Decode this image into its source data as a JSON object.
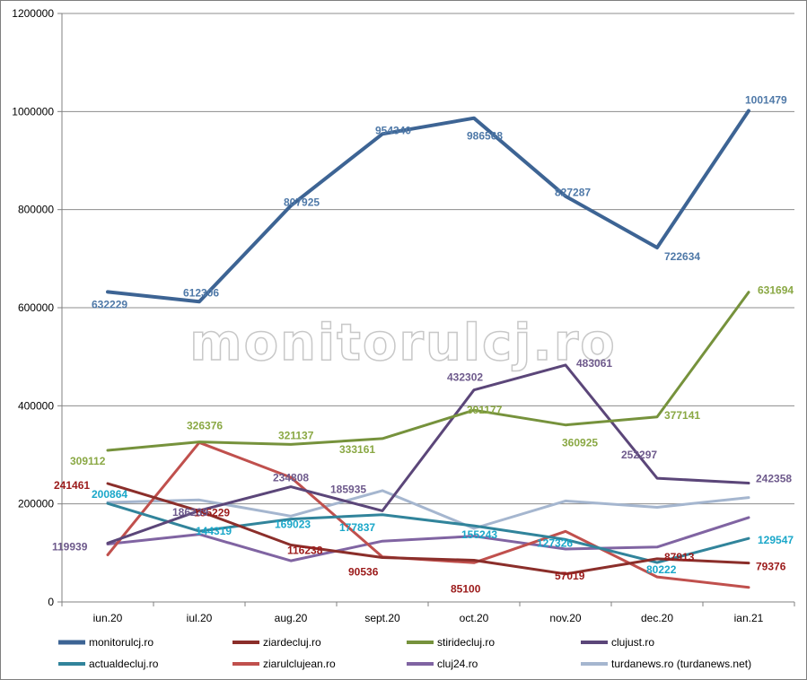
{
  "watermark": "monitorulcj.ro",
  "chart_data": {
    "type": "line",
    "categories": [
      "iun.20",
      "iul.20",
      "aug.20",
      "sept.20",
      "oct.20",
      "nov.20",
      "dec.20",
      "ian.21"
    ],
    "ylim": [
      0,
      1200000
    ],
    "yticks": [
      0,
      200000,
      400000,
      600000,
      800000,
      1000000,
      1200000
    ],
    "ytick_labels": [
      "0",
      "200000",
      "400000",
      "600000",
      "800000",
      "1000000",
      "1200000"
    ],
    "grid": true,
    "legend_position": "bottom",
    "series": [
      {
        "name": "monitorulcj.ro",
        "color": "#3d6494",
        "width": 4,
        "labels": true,
        "label_color": "#4f79a8",
        "values": [
          632229,
          612306,
          807925,
          954340,
          986568,
          827287,
          722634,
          1001479
        ]
      },
      {
        "name": "ziardecluj.ro",
        "color": "#8b2e2a",
        "width": 3,
        "labels": true,
        "label_color": "#9b1a1a",
        "values": [
          241461,
          185229,
          116238,
          90536,
          85100,
          57019,
          87913,
          79376
        ]
      },
      {
        "name": "stiridecluj.ro",
        "color": "#76923c",
        "width": 3,
        "labels": true,
        "label_color": "#8aa844",
        "values": [
          309112,
          326376,
          321137,
          333161,
          391177,
          360925,
          377141,
          631694
        ]
      },
      {
        "name": "clujust.ro",
        "color": "#5b4679",
        "width": 3,
        "labels": true,
        "label_color": "#6e5a8c",
        "values": [
          119939,
          186239,
          234808,
          185935,
          432302,
          483061,
          252297,
          242358
        ]
      },
      {
        "name": "actualdecluj.ro",
        "color": "#31849b",
        "width": 3,
        "labels": true,
        "label_color": "#1aa7c9",
        "values": [
          200864,
          144319,
          169023,
          177837,
          155243,
          127326,
          80222,
          129547
        ]
      },
      {
        "name": "ziarulclujean.ro",
        "color": "#c0504d",
        "width": 3,
        "labels": false,
        "values": [
          96000,
          325000,
          254000,
          92000,
          80000,
          144000,
          51000,
          29580
        ]
      },
      {
        "name": "cluj24.ro",
        "color": "#8064a2",
        "width": 3,
        "labels": false,
        "values": [
          118000,
          138000,
          84000,
          124000,
          134000,
          108000,
          112000,
          172117
        ]
      },
      {
        "name": "turdanews.ro (turdanews.net)",
        "color": "#a5b6cf",
        "width": 3,
        "labels": false,
        "values": [
          203000,
          208000,
          175000,
          227000,
          150000,
          206000,
          193000,
          213000
        ]
      }
    ]
  }
}
